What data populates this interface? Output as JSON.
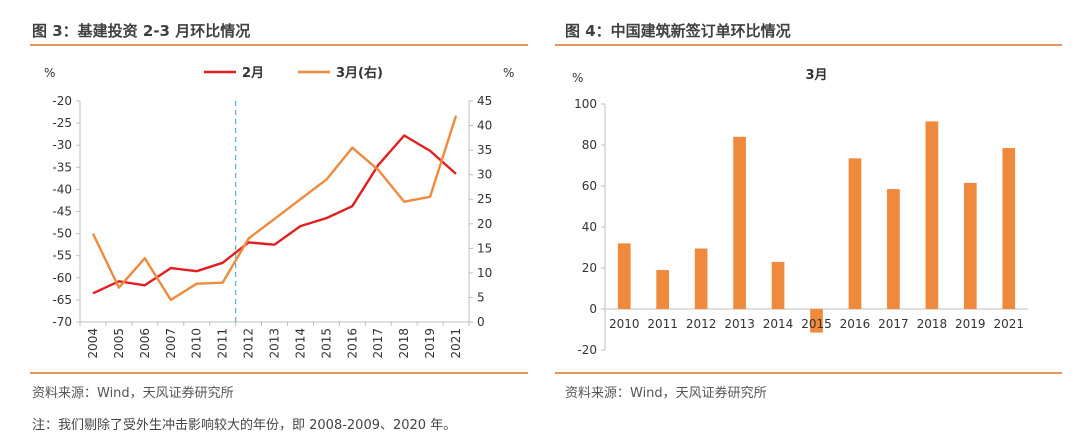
{
  "left": {
    "title": "图 3：基建投资 2-3 月环比情况",
    "source": "资料来源：Wind，天风证券研究所"
  },
  "right": {
    "title": "图 4：中国建筑新签订单环比情况",
    "source": "资料来源：Wind，天风证券研究所"
  },
  "footnote": "注：我们剔除了受外生冲击影响较大的年份，即 2008-2009、2020 年。",
  "colors": {
    "accent_rule": "#e9965a",
    "red": "#e02020",
    "orange": "#ef8a3c",
    "grid": "#d9d9d9",
    "dashed": "#5ab4e0"
  },
  "chart_data": [
    {
      "type": "line",
      "x": [
        "2004",
        "2005",
        "2006",
        "2007",
        "2010",
        "2011",
        "2012",
        "2013",
        "2014",
        "2015",
        "2016",
        "2017",
        "2018",
        "2019",
        "2021"
      ],
      "series": [
        {
          "name": "2月",
          "axis": "left",
          "values": [
            -63.5,
            -60.8,
            -61.7,
            -57.8,
            -58.5,
            -56.6,
            -52.0,
            -52.5,
            -48.3,
            -46.5,
            -43.8,
            -34.5,
            -27.8,
            -31.3,
            -36.5
          ]
        },
        {
          "name": "3月(右)",
          "axis": "right",
          "values": [
            18,
            7,
            13,
            4.5,
            7.8,
            8,
            17,
            21,
            25,
            29,
            35.5,
            31,
            24.5,
            25.5,
            42
          ]
        }
      ],
      "ylabel": "%",
      "y2label": "%",
      "ylim": [
        -70,
        -20
      ],
      "yticks": [
        -20,
        -25,
        -30,
        -35,
        -40,
        -45,
        -50,
        -55,
        -60,
        -65,
        -70
      ],
      "y2lim": [
        0,
        45
      ],
      "y2ticks": [
        45,
        40,
        35,
        30,
        25,
        20,
        15,
        10,
        5,
        0
      ],
      "divider_after": "2011",
      "legend": "top-center",
      "grid": false
    },
    {
      "type": "bar",
      "title": "3月",
      "ylabel": "%",
      "categories": [
        "2010",
        "2011",
        "2012",
        "2013",
        "2014",
        "2015",
        "2016",
        "2017",
        "2018",
        "2019",
        "2021"
      ],
      "values": [
        32,
        19,
        29.5,
        84,
        23,
        -11.5,
        73.5,
        58.5,
        91.5,
        61.5,
        78.5
      ],
      "ylim": [
        -20,
        100
      ],
      "yticks": [
        100,
        80,
        60,
        40,
        20,
        0,
        -20
      ],
      "grid": false
    }
  ]
}
